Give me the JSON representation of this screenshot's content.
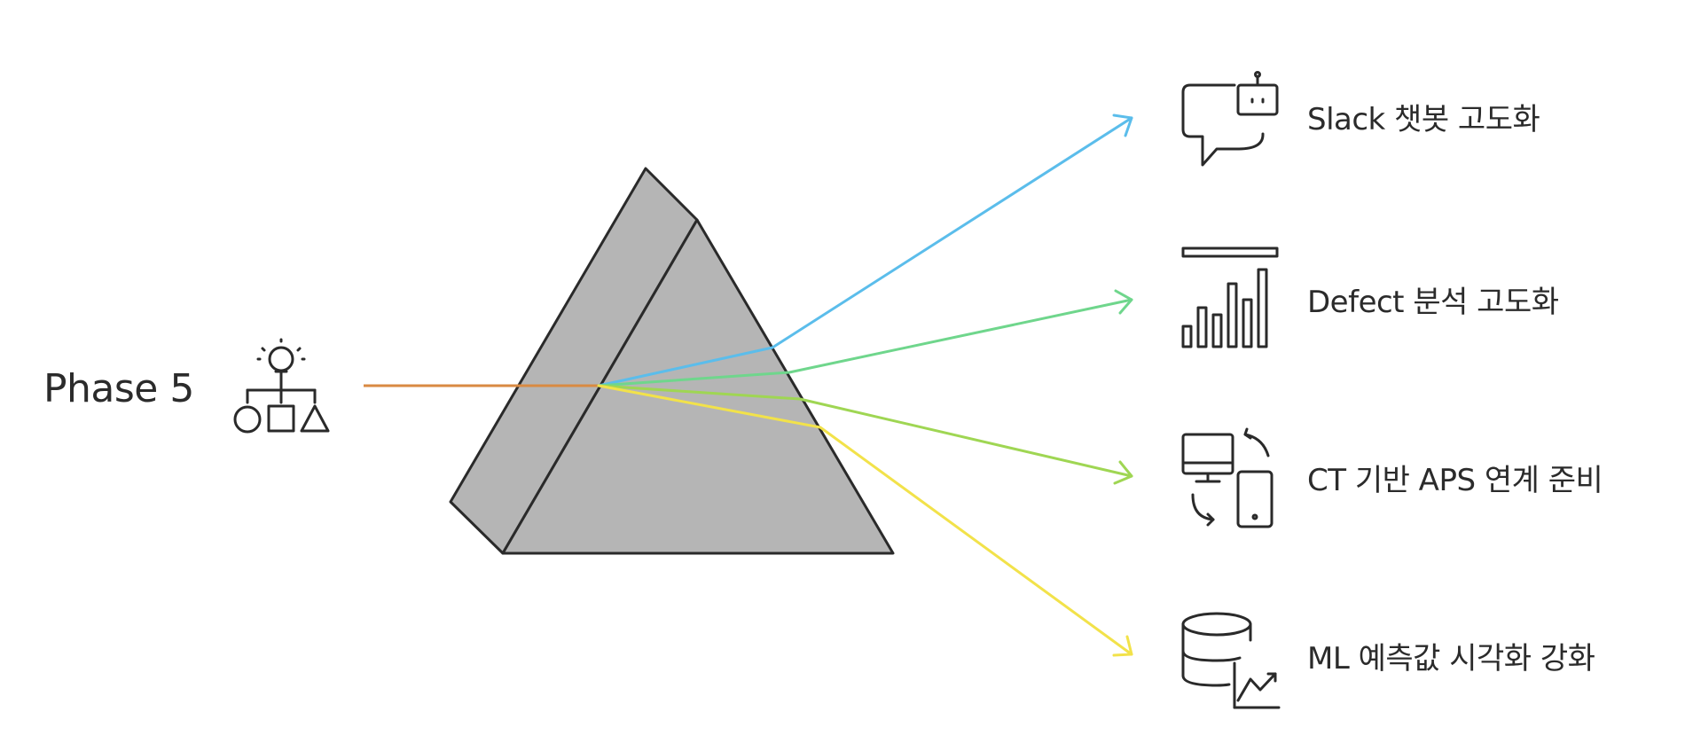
{
  "source_label": "Phase 5",
  "input_beam_color": "#D98A42",
  "prism_color": "#B5B5B5",
  "outputs": [
    {
      "label": "Slack 챗봇 고도화",
      "icon": "chatbot-icon",
      "color": "#5BBDEB"
    },
    {
      "label": "Defect 분석 고도화",
      "icon": "bar-chart-icon",
      "color": "#6FD68C"
    },
    {
      "label": "CT 기반 APS 연계 준비",
      "icon": "device-sync-icon",
      "color": "#9FD653"
    },
    {
      "label": "ML 예측값 시각화 강화",
      "icon": "database-chart-icon",
      "color": "#F2E24A"
    }
  ]
}
